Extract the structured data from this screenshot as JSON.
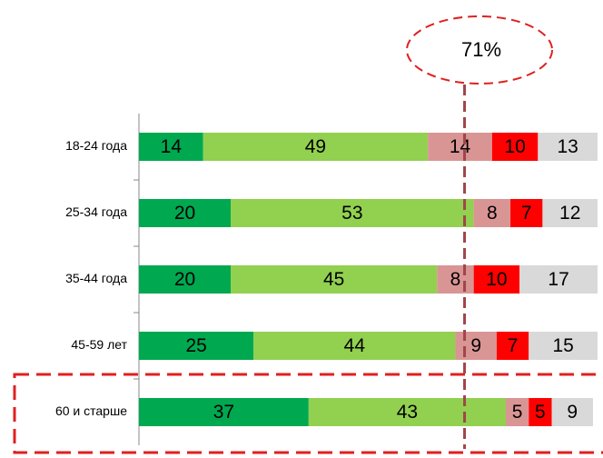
{
  "chart_data": {
    "type": "stacked-bar-horizontal",
    "categories": [
      "18-24 года",
      "25-34 года",
      "35-44 года",
      "45-59 лет",
      "60 и старше"
    ],
    "series": [
      {
        "color": "#00a850",
        "values": [
          14,
          20,
          20,
          25,
          37
        ]
      },
      {
        "color": "#92d050",
        "values": [
          49,
          53,
          45,
          44,
          43
        ]
      },
      {
        "color": "#d99594",
        "values": [
          14,
          8,
          8,
          9,
          5
        ]
      },
      {
        "color": "#ff0000",
        "values": [
          10,
          7,
          10,
          7,
          5
        ]
      },
      {
        "color": "#d9d9d9",
        "values": [
          13,
          12,
          17,
          15,
          9
        ]
      }
    ],
    "xlim": [
      0,
      100
    ],
    "annotation": {
      "value": 71,
      "label": "71%"
    }
  }
}
